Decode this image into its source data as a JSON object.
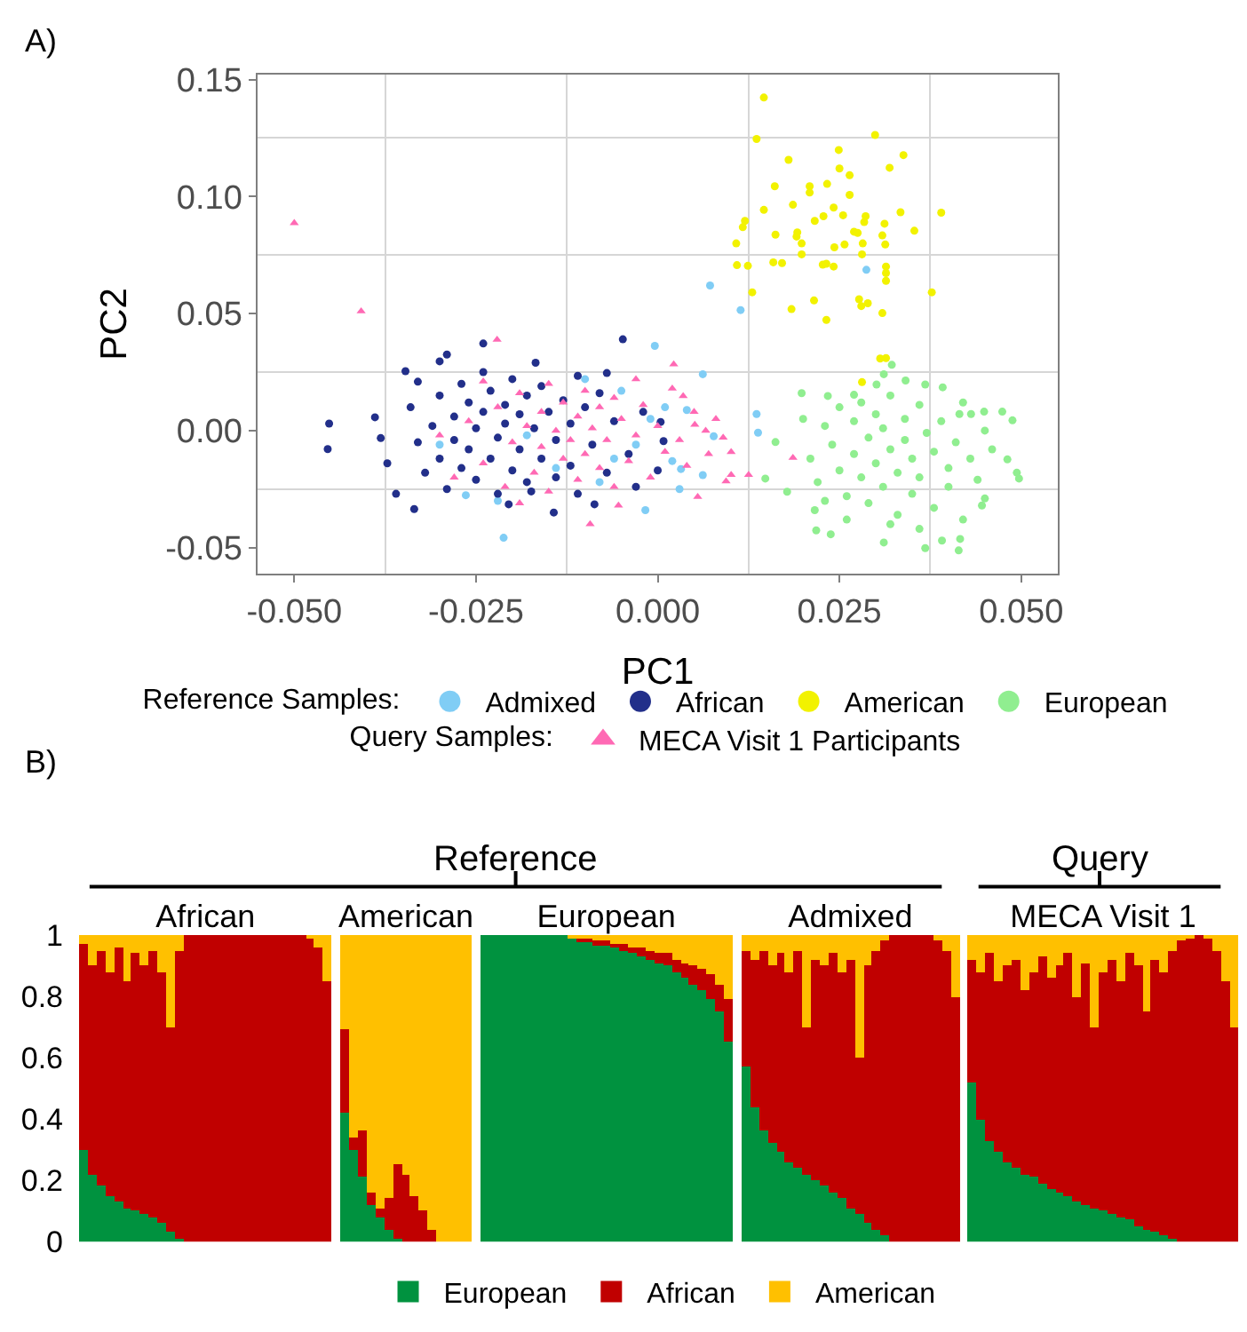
{
  "chart_data": [
    {
      "type": "scatter",
      "xlabel": "PC1",
      "ylabel": "PC2",
      "annotations": [
        "A)"
      ],
      "legend_title": [
        "Reference Samples:",
        "Query Samples:"
      ],
      "legend": "bottom",
      "marker": "circle",
      "grid": true,
      "xlim": [
        -0.055,
        0.055
      ],
      "ylim": [
        -0.061,
        0.152
      ],
      "xticks": [
        {
          "value": -0.05,
          "label": "-0.050"
        },
        -0.025,
        {
          "value": 0,
          "label": "0.000"
        },
        0.025,
        {
          "value": 0.05,
          "label": "0.050"
        }
      ],
      "yticks": [
        -0.05,
        {
          "value": 0,
          "label": "0.00"
        },
        0.05,
        {
          "value": 0.1,
          "label": "0.10"
        },
        0.15
      ],
      "series": [
        {
          "name": "Admixed",
          "color": "#80cdf5",
          "x": [
            -0.0212,
            -0.0004,
            -0.0017,
            -0.0264,
            0.0072,
            0.0114,
            0.0287,
            0.0136,
            0.0138,
            0.0062,
            0.0077,
            0.0032,
            0.0062,
            0.004,
            -0.03,
            -0.022,
            -0.018,
            -0.014,
            -0.01,
            -0.008,
            -0.006,
            -0.005,
            -0.003,
            -0.001,
            0.001,
            0.002,
            0.003
          ],
          "values": [
            -0.0458,
            0.0362,
            -0.034,
            -0.0276,
            0.062,
            0.0515,
            0.0687,
            0.0071,
            -0.0009,
            0.0241,
            -0.0024,
            -0.0164,
            -0.019,
            0.0088,
            -0.006,
            -0.03,
            -0.002,
            -0.016,
            0.022,
            -0.022,
            -0.012,
            0.017,
            -0.006,
            0.005,
            0.01,
            -0.013,
            -0.025
          ]
        },
        {
          "name": "African",
          "color": "#222f8a",
          "x": [
            -0.0452,
            -0.0454,
            -0.0389,
            -0.0381,
            -0.0372,
            -0.036,
            -0.0335,
            -0.0347,
            -0.033,
            -0.03,
            -0.029,
            -0.024,
            -0.0048,
            -0.0143,
            -0.0205,
            -0.0174,
            -0.0168,
            -0.011,
            -0.007,
            0.0,
            -0.003,
            -0.0087,
            -0.034,
            -0.033,
            -0.032,
            -0.031,
            -0.03,
            -0.03,
            -0.029,
            -0.028,
            -0.028,
            -0.027,
            -0.027,
            -0.026,
            -0.026,
            -0.025,
            -0.025,
            -0.024,
            -0.024,
            -0.023,
            -0.023,
            -0.022,
            -0.022,
            -0.021,
            -0.021,
            -0.02,
            -0.02,
            -0.019,
            -0.019,
            -0.018,
            -0.018,
            -0.017,
            -0.016,
            -0.016,
            -0.015,
            -0.014,
            -0.014,
            -0.013,
            -0.012,
            -0.012,
            -0.011,
            -0.01,
            -0.009,
            -0.008,
            -0.007,
            -0.006,
            -0.004,
            -0.002,
            0.0004,
            0.0008
          ],
          "values": [
            0.003,
            -0.0079,
            0.0057,
            -0.0032,
            -0.014,
            -0.027,
            -0.0335,
            0.0254,
            0.0209,
            0.0296,
            0.0325,
            0.0372,
            0.039,
            -0.035,
            -0.0315,
            -0.026,
            0.029,
            0.0234,
            0.0246,
            -0.017,
            -0.024,
            -0.0315,
            0.01,
            -0.005,
            -0.018,
            0.002,
            0.015,
            -0.012,
            -0.025,
            0.006,
            -0.004,
            0.02,
            -0.016,
            0.012,
            -0.008,
            0.001,
            -0.021,
            0.025,
            0.008,
            -0.012,
            0.017,
            -0.003,
            -0.027,
            0.011,
            0.003,
            -0.017,
            0.022,
            -0.008,
            0.007,
            0.015,
            -0.022,
            0.001,
            -0.012,
            0.019,
            0.008,
            -0.004,
            -0.02,
            0.013,
            0.003,
            -0.015,
            -0.027,
            0.01,
            -0.006,
            0.016,
            -0.018,
            0.004,
            -0.01,
            0.008,
            0.0037,
            -0.0045
          ]
        },
        {
          "name": "American",
          "color": "#f2f200",
          "x": [
            0.0146,
            0.0136,
            0.0299,
            0.0338,
            0.0249,
            0.018,
            0.0319,
            0.025,
            0.0264,
            0.0161,
            0.0233,
            0.0209,
            0.0209,
            0.0264,
            0.0186,
            0.0242,
            0.0146,
            0.0334,
            0.039,
            0.012,
            0.0216,
            0.0255,
            0.0228,
            0.0286,
            0.0284,
            0.0312,
            0.027,
            0.0117,
            0.0192,
            0.0191,
            0.0162,
            0.0309,
            0.0353,
            0.0108,
            0.0198,
            0.0243,
            0.0257,
            0.0282,
            0.0313,
            0.0198,
            0.0281,
            0.0159,
            0.0171,
            0.0227,
            0.0242,
            0.0109,
            0.0124,
            0.0314,
            0.0314,
            0.0314,
            0.0215,
            0.0277,
            0.0289,
            0.028,
            0.0184,
            0.0309,
            0.0232,
            0.013,
            0.0377,
            0.0306,
            0.0314,
            0.0281,
            0.0275,
            0.0232
          ],
          "values": [
            0.1423,
            0.1246,
            0.1263,
            0.1177,
            0.1199,
            0.1157,
            0.1123,
            0.112,
            0.1091,
            0.1044,
            0.1054,
            0.1044,
            0.1017,
            0.1007,
            0.0965,
            0.0953,
            0.0943,
            0.0933,
            0.0931,
            0.0896,
            0.0896,
            0.092,
            0.0916,
            0.0916,
            0.0891,
            0.0884,
            0.085,
            0.0869,
            0.0847,
            0.0829,
            0.0837,
            0.0834,
            0.0854,
            0.08,
            0.08,
            0.0783,
            0.0795,
            0.08,
            0.0795,
            0.0753,
            0.0753,
            0.0719,
            0.0716,
            0.0709,
            0.0701,
            0.0707,
            0.0704,
            0.0701,
            0.0673,
            0.064,
            0.0556,
            0.0561,
            0.0544,
            0.0532,
            0.0519,
            0.0502,
            0.0473,
            0.0591,
            0.0591,
            0.0308,
            0.031,
            0.0207,
            0.0845,
            0.0713
          ]
        },
        {
          "name": "European",
          "color": "#90ee90",
          "x": [
            0.0322,
            0.0198,
            0.0162,
            0.0148,
            0.0178,
            0.0216,
            0.0218,
            0.0238,
            0.0311,
            0.0368,
            0.0414,
            0.0416,
            0.0391,
            0.0446,
            0.045,
            0.0497,
            0.0494,
            0.0481,
            0.0488,
            0.0474,
            0.0449,
            0.0415,
            0.0431,
            0.0392,
            0.0368,
            0.0341,
            0.0301,
            0.0311,
            0.027,
            0.0234,
            0.02,
            0.021,
            0.022,
            0.023,
            0.024,
            0.025,
            0.025,
            0.026,
            0.027,
            0.027,
            0.028,
            0.028,
            0.029,
            0.029,
            0.03,
            0.03,
            0.031,
            0.031,
            0.032,
            0.032,
            0.033,
            0.033,
            0.034,
            0.034,
            0.035,
            0.035,
            0.036,
            0.036,
            0.037,
            0.038,
            0.038,
            0.039,
            0.04,
            0.04,
            0.041,
            0.042,
            0.043,
            0.044,
            0.045,
            0.046,
            0.023,
            0.032,
            0.026,
            0.036,
            0.042
          ],
          "values": [
            0.0281,
            0.016,
            -0.0049,
            -0.0205,
            -0.0261,
            -0.034,
            -0.0426,
            -0.0443,
            -0.0478,
            -0.0502,
            -0.0512,
            -0.0463,
            -0.047,
            -0.032,
            -0.029,
            -0.0205,
            -0.018,
            -0.0123,
            0.0044,
            0.0081,
            0.0081,
            0.0071,
            0.0071,
            0.0185,
            0.0197,
            0.0214,
            0.0197,
            0.0241,
            0.0153,
            0.0148,
            0.005,
            -0.012,
            -0.022,
            0.002,
            -0.006,
            0.01,
            -0.017,
            -0.028,
            0.004,
            -0.01,
            -0.02,
            0.012,
            -0.003,
            -0.031,
            0.007,
            -0.014,
            -0.024,
            0.001,
            -0.008,
            0.015,
            -0.018,
            -0.036,
            0.005,
            -0.004,
            -0.012,
            -0.027,
            0.011,
            -0.02,
            -0.001,
            -0.009,
            -0.033,
            0.004,
            -0.016,
            -0.024,
            -0.005,
            0.012,
            -0.012,
            -0.021,
            0.0,
            -0.008,
            -0.03,
            -0.04,
            -0.038,
            -0.042,
            -0.038
          ]
        },
        {
          "name": "MECA Visit 1 Participants",
          "color": "#ff69b4",
          "marker": "triangle",
          "x": [
            -0.05,
            -0.0408,
            -0.0221,
            -0.0093,
            -0.0054,
            0.0022,
            0.0035,
            0.0051,
            0.0066,
            0.0101,
            0.0101,
            0.0125,
            0.0094,
            0.0055,
            0.0186,
            -0.03,
            -0.028,
            -0.026,
            -0.024,
            -0.022,
            -0.021,
            -0.02,
            -0.019,
            -0.018,
            -0.017,
            -0.016,
            -0.016,
            -0.015,
            -0.015,
            -0.014,
            -0.013,
            -0.013,
            -0.012,
            -0.011,
            -0.011,
            -0.01,
            -0.01,
            -0.009,
            -0.008,
            -0.008,
            -0.007,
            -0.006,
            -0.006,
            -0.005,
            -0.004,
            -0.003,
            -0.003,
            -0.002,
            -0.001,
            0.0,
            0.001,
            0.002,
            0.003,
            0.004,
            0.005,
            0.007,
            0.008,
            0.009,
            -0.024,
            -0.019
          ],
          "values": [
            0.0887,
            0.051,
            0.0389,
            -0.04,
            -0.032,
            0.0283,
            0.0148,
            0.0025,
            0.0,
            -0.0091,
            -0.0189,
            -0.0189,
            -0.0217,
            -0.0283,
            -0.0116,
            -0.002,
            -0.02,
            0.004,
            -0.014,
            0.01,
            -0.024,
            -0.005,
            0.016,
            0.002,
            -0.018,
            0.008,
            -0.007,
            0.02,
            -0.026,
            0.0,
            -0.012,
            0.012,
            -0.004,
            0.006,
            -0.021,
            0.017,
            -0.01,
            0.001,
            -0.016,
            0.01,
            -0.004,
            0.014,
            -0.024,
            0.005,
            -0.013,
            0.022,
            -0.002,
            0.011,
            -0.02,
            0.002,
            -0.009,
            0.018,
            -0.004,
            -0.015,
            0.008,
            -0.01,
            0.005,
            -0.003,
            0.021,
            -0.031
          ]
        }
      ]
    },
    {
      "type": "bar",
      "stacked": true,
      "annotations": [
        "B)",
        "Reference",
        "Query"
      ],
      "legend": "bottom",
      "ylim": [
        0,
        1
      ],
      "yticks": [
        0,
        0.2,
        0.4,
        0.6,
        0.8,
        1
      ],
      "categories": [
        null,
        null,
        null,
        null,
        null,
        null,
        null,
        null,
        null,
        null,
        null,
        null,
        null,
        null,
        "African",
        null,
        null,
        null,
        null,
        null,
        null,
        null,
        null,
        null,
        null,
        null,
        null,
        null,
        null,
        null,
        null,
        null,
        null,
        null,
        null,
        null,
        null,
        "American",
        null,
        null,
        null,
        null,
        null,
        null,
        null,
        null,
        null,
        null,
        null,
        null,
        null,
        null,
        null,
        null,
        null,
        null,
        null,
        null,
        null,
        null,
        "European",
        null,
        null,
        null,
        null,
        null,
        null,
        null,
        null,
        null,
        null,
        null,
        null,
        null,
        null,
        null,
        null,
        null,
        null,
        null,
        null,
        null,
        null,
        null,
        null,
        null,
        null,
        null,
        "Admixed",
        null,
        null,
        null,
        null,
        null,
        null,
        null,
        null,
        null,
        null,
        null,
        null,
        null,
        null,
        null,
        null,
        null,
        null,
        null,
        null,
        null,
        null,
        null,
        null,
        null,
        null,
        null,
        null,
        "MECA Visit 1",
        null,
        null,
        null,
        null,
        null,
        null,
        null,
        null,
        null,
        null,
        null,
        null,
        null,
        null,
        null
      ],
      "series": [
        {
          "name": "European",
          "color": "#00923f",
          "values": [
            0.3,
            0.22,
            0.18,
            0.15,
            0.13,
            0.11,
            0.1,
            0.09,
            0.08,
            0.06,
            0.03,
            0.01,
            0,
            0,
            0,
            0,
            0,
            0,
            0,
            0,
            0,
            0,
            0,
            0,
            0,
            0,
            0,
            0,
            0,
            null,
            0.42,
            0.3,
            0.21,
            0.12,
            0.08,
            0.04,
            0.01,
            0,
            0,
            0,
            0,
            0,
            0,
            0,
            0,
            null,
            1,
            1,
            1,
            1,
            1,
            1,
            1,
            1,
            1,
            1,
            0.99,
            0.98,
            0.98,
            0.97,
            0.97,
            0.96,
            0.95,
            0.94,
            0.93,
            0.92,
            0.91,
            0.9,
            0.88,
            0.86,
            0.84,
            0.82,
            0.79,
            0.75,
            0.65,
            null,
            0.57,
            0.44,
            0.36,
            0.32,
            0.29,
            0.26,
            0.24,
            0.22,
            0.2,
            0.18,
            0.16,
            0.14,
            0.11,
            0.09,
            0.06,
            0.04,
            0.02,
            0,
            0,
            0,
            0,
            0,
            0,
            0,
            0,
            null,
            0.52,
            0.4,
            0.33,
            0.29,
            0.26,
            0.24,
            0.22,
            0.21,
            0.19,
            0.17,
            0.16,
            0.15,
            0.13,
            0.12,
            0.11,
            0.1,
            0.09,
            0.08,
            0.07,
            0.05,
            0.04,
            0.03,
            0.02,
            0.01,
            0,
            0,
            0,
            0,
            0,
            0,
            0
          ]
        },
        {
          "name": "African",
          "color": "#c00000",
          "values": [
            0.67,
            0.68,
            0.77,
            0.73,
            0.83,
            0.74,
            0.84,
            0.81,
            0.87,
            0.82,
            0.67,
            0.94,
            1,
            1,
            1,
            1,
            1,
            1,
            1,
            1,
            1,
            1,
            1,
            1,
            1,
            1,
            0.99,
            0.96,
            0.85,
            null,
            0.27,
            0.04,
            0.15,
            0.04,
            0.03,
            0.1,
            0.24,
            0.22,
            0.15,
            0.1,
            0.04,
            0,
            0,
            0,
            0,
            null,
            0,
            0,
            0,
            0,
            0,
            0,
            0,
            0,
            0,
            0,
            0,
            0.01,
            0.01,
            0.01,
            0.01,
            0.01,
            0.02,
            0.02,
            0.03,
            0.03,
            0.03,
            0.04,
            0.04,
            0.05,
            0.06,
            0.07,
            0.08,
            0.09,
            0.14,
            null,
            0.38,
            0.48,
            0.59,
            0.58,
            0.65,
            0.62,
            0.71,
            0.48,
            0.72,
            0.72,
            0.78,
            0.74,
            0.81,
            0.51,
            0.84,
            0.91,
            0.96,
            1,
            1,
            1,
            1,
            1,
            0.98,
            0.95,
            0.8,
            null,
            0.4,
            0.48,
            0.61,
            0.56,
            0.64,
            0.68,
            0.6,
            0.67,
            0.74,
            0.69,
            0.74,
            0.79,
            0.67,
            0.79,
            0.59,
            0.78,
            0.83,
            0.77,
            0.87,
            0.85,
            0.71,
            0.89,
            0.86,
            0.94,
            0.98,
            0.99,
            1,
            0.99,
            0.95,
            0.85,
            0.7
          ]
        },
        {
          "name": "American",
          "color": "#ffc000",
          "values": [
            0.03,
            0.1,
            0.05,
            0.12,
            0.04,
            0.15,
            0.06,
            0.1,
            0.05,
            0.12,
            0.3,
            0.05,
            0,
            0,
            0,
            0,
            0,
            0,
            0,
            0,
            0,
            0,
            0,
            0,
            0,
            0,
            0.01,
            0.04,
            0.15,
            null,
            0.31,
            0.66,
            0.64,
            0.84,
            0.89,
            0.86,
            0.75,
            0.78,
            0.85,
            0.9,
            0.96,
            1,
            1,
            1,
            1,
            null,
            0,
            0,
            0,
            0,
            0,
            0,
            0,
            0,
            0,
            0,
            0.01,
            0.01,
            0.01,
            0.02,
            0.02,
            0.03,
            0.03,
            0.04,
            0.04,
            0.05,
            0.06,
            0.06,
            0.08,
            0.09,
            0.1,
            0.11,
            0.13,
            0.16,
            0.21,
            null,
            0.05,
            0.08,
            0.05,
            0.1,
            0.06,
            0.12,
            0.05,
            0.3,
            0.08,
            0.1,
            0.06,
            0.12,
            0.08,
            0.4,
            0.1,
            0.05,
            0.02,
            0,
            0,
            0,
            0,
            0,
            0.02,
            0.05,
            0.2,
            null,
            0.08,
            0.12,
            0.06,
            0.15,
            0.1,
            0.08,
            0.18,
            0.12,
            0.07,
            0.14,
            0.1,
            0.06,
            0.2,
            0.09,
            0.3,
            0.12,
            0.08,
            0.15,
            0.06,
            0.1,
            0.25,
            0.08,
            0.12,
            0.05,
            0.02,
            0.01,
            0,
            0.01,
            0.05,
            0.15,
            0.3
          ]
        }
      ]
    }
  ]
}
